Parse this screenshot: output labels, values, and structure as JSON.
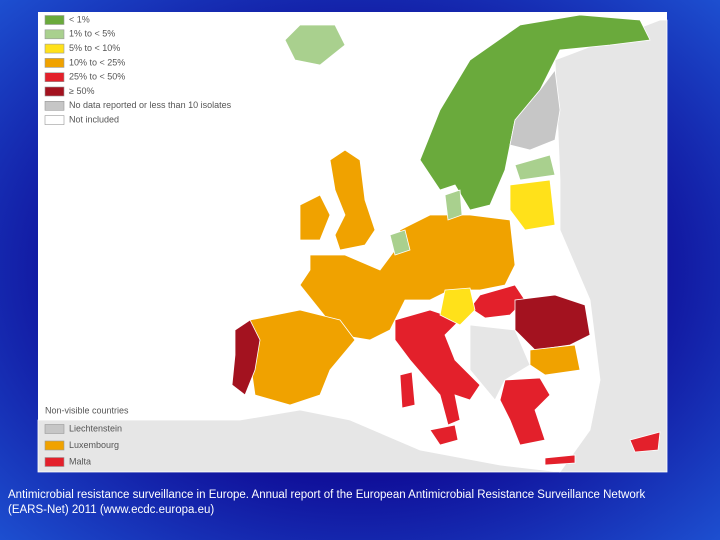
{
  "legend": {
    "items": [
      {
        "label": "< 1%",
        "color": "#6aaa3c"
      },
      {
        "label": "1% to < 5%",
        "color": "#a9d08e"
      },
      {
        "label": "5% to < 10%",
        "color": "#ffe11a"
      },
      {
        "label": "10% to < 25%",
        "color": "#f0a200"
      },
      {
        "label": "25% to < 50%",
        "color": "#e3202b"
      },
      {
        "label": "≥ 50%",
        "color": "#a3121f"
      },
      {
        "label": "No data reported or less than 10 isolates",
        "color": "#c6c6c6"
      },
      {
        "label": "Not included",
        "color": "#ffffff"
      }
    ]
  },
  "non_visible": {
    "title": "Non-visible countries",
    "items": [
      {
        "label": "Liechtenstein",
        "color": "#c6c6c6"
      },
      {
        "label": "Luxembourg",
        "color": "#f0a200"
      },
      {
        "label": "Malta",
        "color": "#e3202b"
      }
    ]
  },
  "caption": {
    "lines": [
      "Antimicrobial resistance surveillance in Europe. Annual report of the European Antimicrobial Resistance Surveillance Network",
      "(EARS-Net) 2011 (www.ecdc.europa.eu)"
    ]
  }
}
